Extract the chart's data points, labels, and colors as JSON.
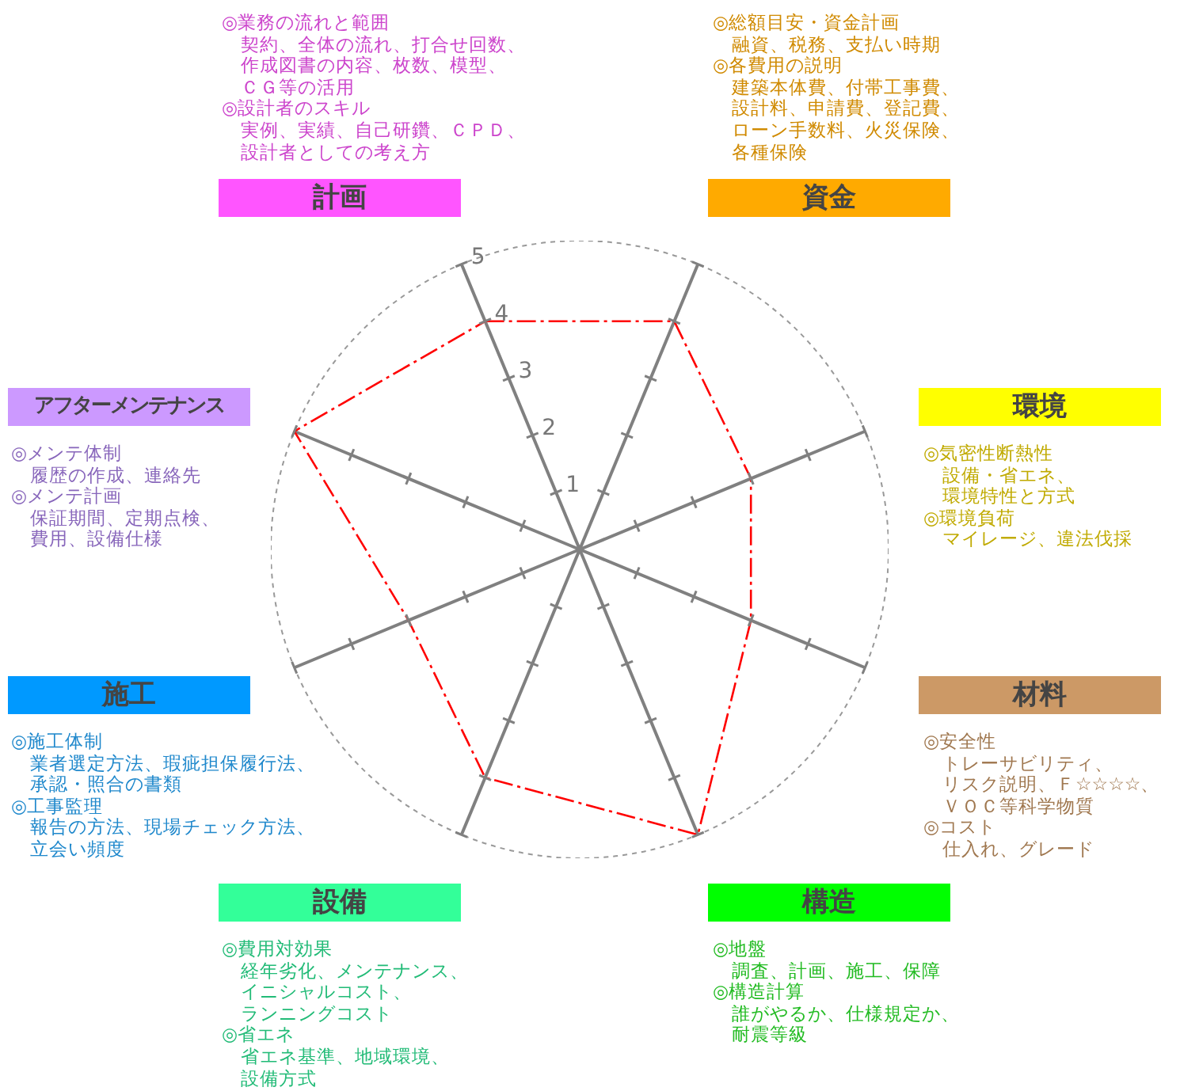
{
  "chart_data": {
    "type": "radar",
    "categories": [
      "計画",
      "資金",
      "環境",
      "材料",
      "構造",
      "設備",
      "施工",
      "アフターメンテナンス"
    ],
    "series": [
      {
        "color": "#ff0000",
        "values": [
          4,
          4,
          3,
          3,
          5,
          4,
          3,
          5
        ]
      }
    ],
    "ylim": [
      0,
      5
    ],
    "yticks": [
      1,
      2,
      3,
      4,
      5
    ],
    "marker": "none",
    "line_style": "dashed",
    "annotations": [
      "◎業務の流れと範囲",
      "契約、全体の流れ、打合せ回数、",
      "作成図書の内容、枚数、模型、",
      "ＣＧ等の活用",
      "◎設計者のスキル",
      "実例、実績、自己研鑽、ＣＰＤ、",
      "設計者としての考え方",
      "◎総額目安・資金計画",
      "融資、税務、支払い時期",
      "◎各費用の説明",
      "建築本体費、付帯工事費、",
      "設計料、申請費、登記費、",
      "ローン手数料、火災保険、",
      "各種保険",
      "◎気密性断熱性",
      "設備・省エネ、",
      "環境特性と方式",
      "◎環境負荷",
      "マイレージ、違法伐採",
      "◎安全性",
      "トレーサビリティ、",
      "リスク説明、Ｆ☆☆☆☆、",
      "ＶＯＣ等科学物質",
      "◎コスト",
      "仕入れ、グレード",
      "◎地盤",
      "調査、計画、施工、保障",
      "◎構造計算",
      "誰がやるか、仕様規定か、",
      "耐震等級",
      "◎費用対効果",
      "経年劣化、メンテナンス、",
      "イニシャルコスト、",
      "ランニングコスト",
      "◎省エネ",
      "省エネ基準、地域環境、",
      "設備方式",
      "◎施工体制",
      "業者選定方法、瑕疵担保履行法、",
      "承認・照合の書類",
      "◎工事監理",
      "報告の方法、現場チェック方法、",
      "立会い頻度",
      "◎メンテ体制",
      "履歴の作成、連絡先",
      "◎メンテ計画",
      "保証期間、定期点検、",
      "費用、設備仕様"
    ]
  }
}
